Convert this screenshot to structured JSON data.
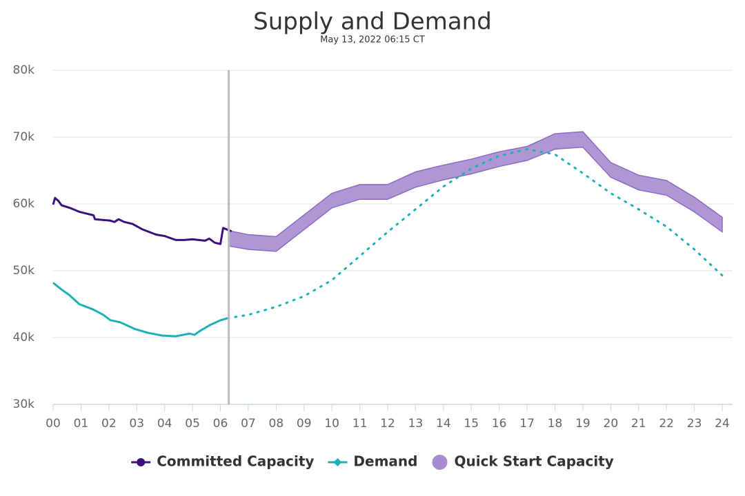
{
  "chart_data": {
    "type": "line",
    "title": "Supply and Demand",
    "subtitle": "May 13, 2022 06:15 CT",
    "xlim": [
      0,
      24
    ],
    "xticks": [
      {
        "value": 0,
        "label": "00"
      },
      {
        "value": 1,
        "label": "01"
      },
      {
        "value": 2,
        "label": "02"
      },
      {
        "value": 3,
        "label": "03"
      },
      {
        "value": 4,
        "label": "04"
      },
      {
        "value": 5,
        "label": "05"
      },
      {
        "value": 6,
        "label": "06"
      },
      {
        "value": 7,
        "label": "07"
      },
      {
        "value": 8,
        "label": "08"
      },
      {
        "value": 9,
        "label": "09"
      },
      {
        "value": 10,
        "label": "10"
      },
      {
        "value": 11,
        "label": "11"
      },
      {
        "value": 12,
        "label": "12"
      },
      {
        "value": 13,
        "label": "13"
      },
      {
        "value": 14,
        "label": "14"
      },
      {
        "value": 15,
        "label": "15"
      },
      {
        "value": 16,
        "label": "16"
      },
      {
        "value": 17,
        "label": "17"
      },
      {
        "value": 18,
        "label": "18"
      },
      {
        "value": 19,
        "label": "19"
      },
      {
        "value": 20,
        "label": "20"
      },
      {
        "value": 21,
        "label": "21"
      },
      {
        "value": 22,
        "label": "22"
      },
      {
        "value": 23,
        "label": "23"
      },
      {
        "value": 24,
        "label": "24"
      }
    ],
    "ylim": [
      30000,
      80000
    ],
    "yticks": [
      {
        "value": 30000,
        "label": "30k"
      },
      {
        "value": 40000,
        "label": "40k"
      },
      {
        "value": 50000,
        "label": "50k"
      },
      {
        "value": 60000,
        "label": "60k"
      },
      {
        "value": 70000,
        "label": "70k"
      },
      {
        "value": 80000,
        "label": "80k"
      }
    ],
    "grid": true,
    "current_time": 6.3,
    "series": [
      {
        "name": "Committed Capacity",
        "color": "#3b0f80",
        "x": [
          0,
          0.07,
          0.2,
          0.3,
          0.6,
          0.95,
          1.45,
          1.5,
          2.05,
          2.2,
          2.35,
          2.55,
          2.85,
          3.2,
          3.7,
          4.0,
          4.4,
          4.7,
          5.0,
          5.45,
          5.6,
          5.8,
          6.0,
          6.1,
          6.4
        ],
        "values": [
          59900,
          60900,
          60400,
          59800,
          59400,
          58800,
          58300,
          57700,
          57500,
          57300,
          57700,
          57300,
          57000,
          56200,
          55400,
          55200,
          54600,
          54600,
          54700,
          54500,
          54800,
          54200,
          54000,
          56400,
          55900
        ]
      },
      {
        "name": "Demand",
        "color": "#1ab0b8",
        "x": [
          0,
          0.3,
          0.57,
          0.94,
          1.44,
          1.8,
          2.05,
          2.4,
          2.92,
          3.41,
          3.91,
          4.4,
          4.9,
          5.07,
          5.27,
          5.64,
          6.01,
          6.26
        ],
        "values": [
          48200,
          47200,
          46400,
          45000,
          44200,
          43400,
          42600,
          42300,
          41300,
          40700,
          40300,
          40200,
          40600,
          40400,
          41000,
          41900,
          42600,
          42900
        ],
        "forecast_x": [
          6.26,
          7,
          8,
          9,
          10,
          11,
          12,
          13,
          14,
          15,
          16,
          17,
          18,
          19,
          20,
          21,
          22,
          23,
          24
        ],
        "forecast_values": [
          42900,
          43400,
          44600,
          46200,
          48600,
          52200,
          55800,
          59200,
          62600,
          65300,
          67200,
          68200,
          67400,
          64600,
          61600,
          59200,
          56600,
          53200,
          49300
        ]
      },
      {
        "name": "Quick Start Capacity",
        "color": "#a78bd0",
        "x": [
          6.3,
          7,
          8,
          10,
          11,
          12,
          13,
          14,
          15,
          16,
          17,
          18,
          19,
          20,
          21,
          22,
          23,
          24
        ],
        "high": [
          56000,
          55400,
          55100,
          61600,
          62900,
          62900,
          64800,
          65800,
          66700,
          67800,
          68600,
          70500,
          70800,
          66200,
          64300,
          63500,
          61000,
          58000
        ],
        "low": [
          53700,
          53200,
          52900,
          59400,
          60700,
          60700,
          62500,
          63600,
          64500,
          65600,
          66500,
          68200,
          68500,
          64000,
          62100,
          61300,
          58800,
          55800
        ]
      }
    ]
  }
}
